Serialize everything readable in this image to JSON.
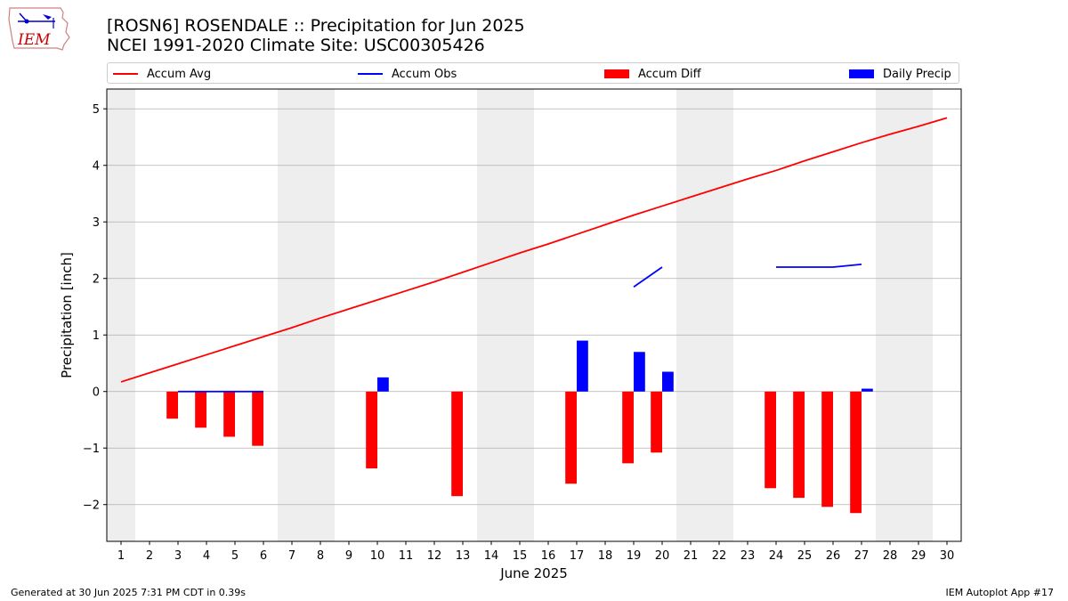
{
  "title_line1": "[ROSN6] ROSENDALE :: Precipitation for Jun 2025",
  "title_line2": "NCEI 1991-2020 Climate Site: USC00305426",
  "logo_text": "IEM",
  "footer_left": "Generated at 30 Jun 2025 7:31 PM CDT in 0.39s",
  "footer_right": "IEM Autoplot App #17",
  "colors": {
    "avg": "#ff0000",
    "obs": "#0000ff",
    "diff": "#ff0000",
    "daily": "#0000ff",
    "weekend": "#eeeeee",
    "grid": "#b0b0b0"
  },
  "legend": [
    {
      "label": "Accum Avg",
      "kind": "line",
      "color": "#ff0000"
    },
    {
      "label": "Accum Obs",
      "kind": "line",
      "color": "#0000ff"
    },
    {
      "label": "Accum Diff",
      "kind": "box",
      "color": "#ff0000"
    },
    {
      "label": "Daily Precip",
      "kind": "box",
      "color": "#0000ff"
    }
  ],
  "chart_data": {
    "type": "bar",
    "xlabel": "June 2025",
    "ylabel": "Precipitation [inch]",
    "xlim": [
      0.5,
      30.5
    ],
    "ylim": [
      -2.65,
      5.35
    ],
    "yticks": [
      -2,
      -1,
      0,
      1,
      2,
      3,
      4,
      5
    ],
    "ytick_labels": [
      "−2",
      "−1",
      "0",
      "1",
      "2",
      "3",
      "4",
      "5"
    ],
    "xticks": [
      "1",
      "2",
      "3",
      "4",
      "5",
      "6",
      "7",
      "8",
      "9",
      "10",
      "11",
      "12",
      "13",
      "14",
      "15",
      "16",
      "17",
      "18",
      "19",
      "20",
      "21",
      "22",
      "23",
      "24",
      "25",
      "26",
      "27",
      "28",
      "29",
      "30"
    ],
    "grid": "y",
    "weekend_days": [
      1,
      7,
      8,
      14,
      15,
      21,
      22,
      28,
      29
    ],
    "accum_avg": [
      0.17,
      0.33,
      0.49,
      0.65,
      0.81,
      0.97,
      1.13,
      1.3,
      1.46,
      1.62,
      1.78,
      1.94,
      2.11,
      2.28,
      2.45,
      2.61,
      2.78,
      2.95,
      3.12,
      3.28,
      3.44,
      3.6,
      3.76,
      3.91,
      4.08,
      4.24,
      4.4,
      4.55,
      4.69,
      4.84
    ],
    "accum_obs": [
      null,
      null,
      0.0,
      0.0,
      0.0,
      0.0,
      null,
      null,
      null,
      null,
      null,
      null,
      null,
      null,
      null,
      null,
      null,
      null,
      1.85,
      2.2,
      null,
      null,
      null,
      2.2,
      2.2,
      2.2,
      2.25,
      null,
      null,
      null
    ],
    "accum_diff": [
      null,
      null,
      -0.48,
      -0.64,
      -0.8,
      -0.96,
      null,
      null,
      null,
      -1.36,
      null,
      null,
      -1.85,
      null,
      null,
      null,
      -1.63,
      null,
      -1.27,
      -1.08,
      null,
      null,
      null,
      -1.71,
      -1.88,
      -2.04,
      -2.15,
      null,
      null,
      null
    ],
    "daily_precip": [
      null,
      null,
      null,
      null,
      null,
      null,
      null,
      null,
      null,
      0.25,
      null,
      null,
      null,
      null,
      null,
      null,
      0.9,
      null,
      0.7,
      0.35,
      null,
      null,
      null,
      null,
      null,
      null,
      0.05,
      null,
      null,
      null
    ]
  }
}
